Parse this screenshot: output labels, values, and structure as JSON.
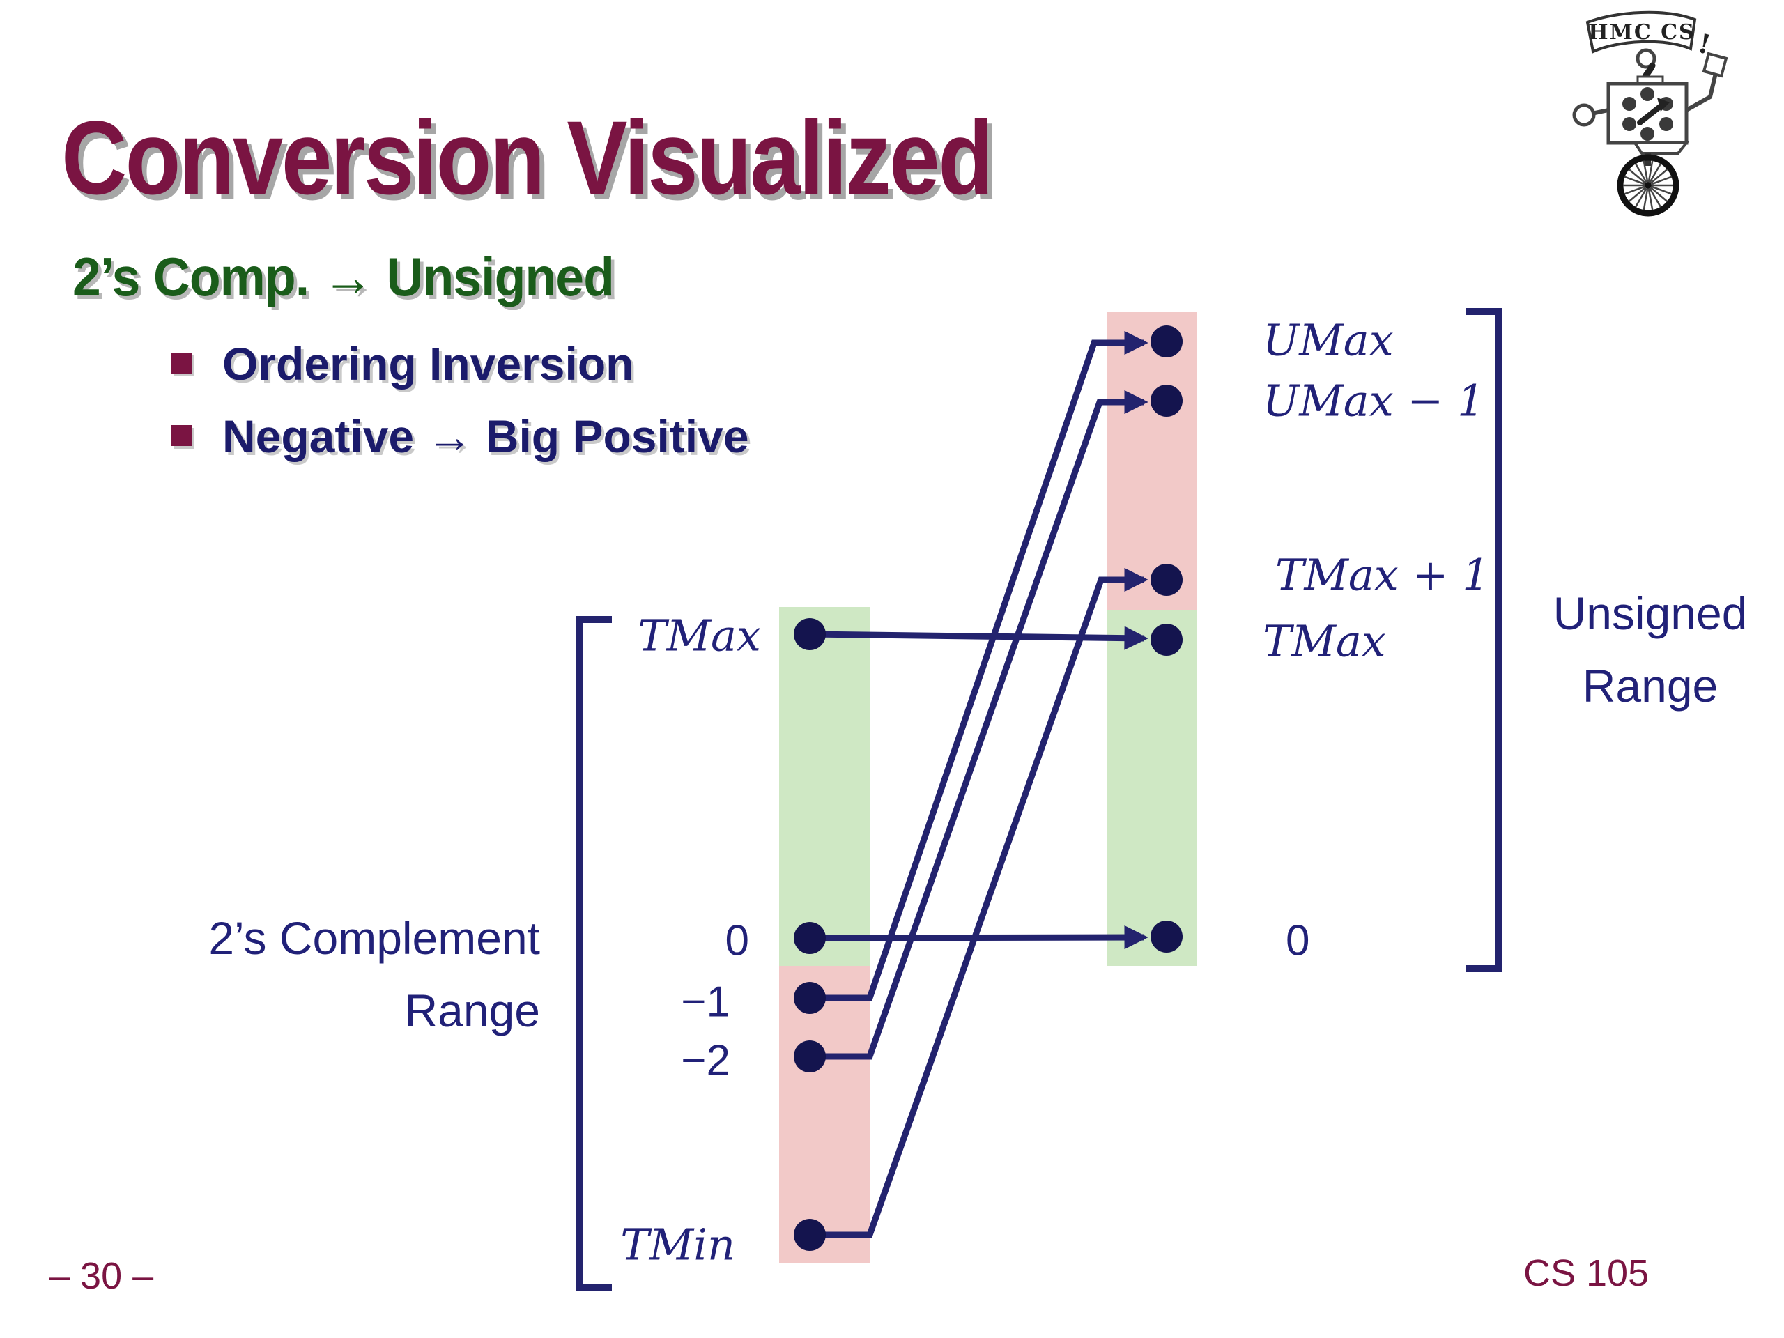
{
  "slide": {
    "title": "Conversion Visualized",
    "subtitle": "2’s Comp. → Unsigned",
    "bullets": [
      "Ordering Inversion",
      "Negative → Big Positive"
    ],
    "footer": {
      "page": "– 30 –",
      "course": "CS 105"
    }
  },
  "logo": {
    "banner": "HMC CS",
    "exclaim": "!"
  },
  "diagram": {
    "left_range": {
      "line1": "2’s Complement",
      "line2": "Range"
    },
    "right_range": {
      "line1": "Unsigned",
      "line2": "Range"
    },
    "left_axis": {
      "tmax": "TMax",
      "zero": "0",
      "minus1": "−1",
      "minus2": "−2",
      "tmin": "TMin"
    },
    "right_axis": {
      "umax": "UMax",
      "umax_minus_1": "UMax − 1",
      "tmax_plus_1": "TMax + 1",
      "tmax": "TMax",
      "zero": "0"
    },
    "mappings": [
      {
        "from": "TMax",
        "to": "TMax"
      },
      {
        "from": "0",
        "to": "0"
      },
      {
        "from": "−1",
        "to": "UMax"
      },
      {
        "from": "−2",
        "to": "UMax − 1"
      },
      {
        "from": "TMin",
        "to": "TMax + 1"
      }
    ],
    "colors": {
      "positive_region": "#cfe8c4",
      "negative_region": "#f2c9c8",
      "line_navy": "#23236e",
      "dot_navy": "#14144e",
      "label_navy": "#212178",
      "title_maroon": "#7a1442",
      "heading_green": "#1a5c1a",
      "bullet_navy": "#1b1b6b"
    }
  }
}
